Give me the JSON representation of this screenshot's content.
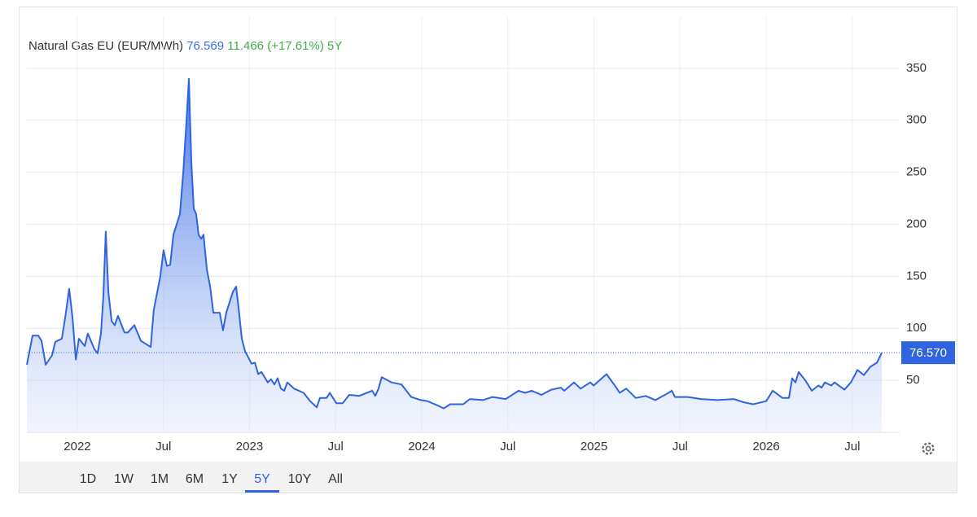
{
  "header": {
    "title": "Natural Gas EU (EUR/MWh)",
    "price": "76.569",
    "change": "11.466",
    "change_pct": "(+17.61%)",
    "period": "5Y"
  },
  "chart_data": {
    "type": "area",
    "x": [
      2021.707,
      2021.74,
      2021.773,
      2021.792,
      2021.816,
      2021.853,
      2021.872,
      2021.91,
      2021.929,
      2021.953,
      2021.972,
      2021.991,
      2022.009,
      2022.043,
      2022.061,
      2022.099,
      2022.118,
      2022.137,
      2022.151,
      2022.165,
      2022.18,
      2022.199,
      2022.217,
      2022.236,
      2022.274,
      2022.293,
      2022.331,
      2022.369,
      2022.426,
      2022.444,
      2022.482,
      2022.501,
      2022.52,
      2022.539,
      2022.558,
      2022.596,
      2022.615,
      2022.634,
      2022.648,
      2022.662,
      2022.676,
      2022.69,
      2022.704,
      2022.719,
      2022.733,
      2022.752,
      2022.771,
      2022.79,
      2022.827,
      2022.846,
      2022.865,
      2022.903,
      2022.922,
      2022.936,
      2022.955,
      2022.974,
      2023.012,
      2023.031,
      2023.05,
      2023.069,
      2023.106,
      2023.125,
      2023.144,
      2023.163,
      2023.182,
      2023.201,
      2023.22,
      2023.258,
      2023.314,
      2023.352,
      2023.39,
      2023.409,
      2023.447,
      2023.466,
      2023.504,
      2023.541,
      2023.579,
      2023.636,
      2023.712,
      2023.73,
      2023.749,
      2023.768,
      2023.825,
      2023.882,
      2023.939,
      2023.995,
      2024.033,
      2024.09,
      2024.128,
      2024.165,
      2024.241,
      2024.279,
      2024.355,
      2024.411,
      2024.487,
      2024.563,
      2024.6,
      2024.638,
      2024.695,
      2024.752,
      2024.808,
      2024.827,
      2024.884,
      2024.922,
      2024.979,
      2024.998,
      2025.073,
      2025.13,
      2025.149,
      2025.187,
      2025.243,
      2025.3,
      2025.357,
      2025.433,
      2025.452,
      2025.47,
      2025.546,
      2025.622,
      2025.716,
      2025.811,
      2025.868,
      2025.924,
      2026.0,
      2026.038,
      2026.095,
      2026.132,
      2026.151,
      2026.17,
      2026.189,
      2026.227,
      2026.265,
      2026.303,
      2026.322,
      2026.34,
      2026.378,
      2026.397,
      2026.454,
      2026.492,
      2026.53,
      2026.567,
      2026.605,
      2026.643,
      2026.671
    ],
    "series": [
      {
        "name": "Natural Gas EU",
        "color": "#2f63e0",
        "values": [
          65,
          93,
          93,
          88,
          65,
          74,
          87,
          90,
          110,
          138,
          110,
          70,
          90,
          83,
          95,
          80,
          76,
          95,
          130,
          193,
          135,
          107,
          103,
          112,
          96,
          96,
          103,
          88,
          82,
          118,
          150,
          175,
          160,
          161,
          190,
          210,
          250,
          300,
          340,
          260,
          215,
          210,
          190,
          186,
          190,
          157,
          140,
          115,
          115,
          98,
          115,
          135,
          140,
          120,
          90,
          78,
          66,
          67,
          56,
          58,
          48,
          51,
          46,
          52,
          42,
          40,
          48,
          42,
          38,
          30,
          24,
          33,
          33,
          38,
          28,
          28,
          36,
          35,
          40,
          35,
          42,
          53,
          48,
          46,
          34,
          31,
          30,
          26,
          23,
          27,
          27,
          32,
          31,
          34,
          32,
          40,
          38,
          40,
          36,
          41,
          43,
          40,
          48,
          42,
          48,
          45,
          56,
          43,
          38,
          42,
          33,
          35,
          31,
          38,
          40,
          34,
          34,
          32,
          31,
          32,
          29,
          27,
          30,
          40,
          33,
          33,
          52,
          48,
          58,
          50,
          40,
          45,
          43,
          48,
          45,
          48,
          41,
          48,
          60,
          55,
          63,
          67,
          76.569
        ]
      }
    ],
    "xlim": [
      2021.707,
      2026.775
    ],
    "xticks": [
      2022,
      {
        "value": 2022.5,
        "label": "Jul"
      },
      2023,
      {
        "value": 2023.5,
        "label": "Jul"
      },
      2024,
      {
        "value": 2024.5,
        "label": "Jul"
      },
      2025,
      {
        "value": 2025.5,
        "label": "Jul"
      },
      2026,
      {
        "value": 2026.5,
        "label": "Jul"
      }
    ],
    "ylim": [
      0,
      400
    ],
    "yticks": [
      50,
      100,
      150,
      200,
      250,
      300,
      350
    ],
    "grid": true,
    "last_line": {
      "value": 76.57,
      "label": "76.570"
    }
  },
  "periods": [
    "1D",
    "1W",
    "1M",
    "6M",
    "1Y",
    "5Y",
    "10Y",
    "All"
  ],
  "active_period": "5Y"
}
